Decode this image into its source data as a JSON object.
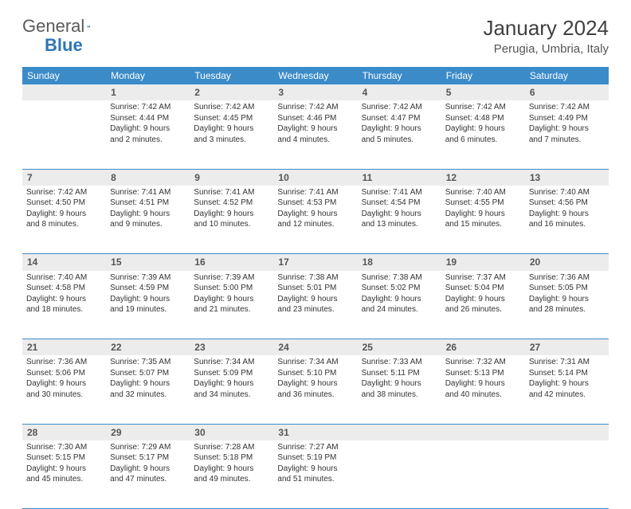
{
  "brand": {
    "part1": "General",
    "part2": "Blue"
  },
  "title": "January 2024",
  "location": "Perugia, Umbria, Italy",
  "colors": {
    "header_bg": "#3b8bc9",
    "header_text": "#ffffff",
    "daynum_bg": "#ececec",
    "border": "#3b8bc9",
    "text": "#333333",
    "brand_blue": "#2e75b6",
    "brand_gray": "#5a5a5a"
  },
  "day_headers": [
    "Sunday",
    "Monday",
    "Tuesday",
    "Wednesday",
    "Thursday",
    "Friday",
    "Saturday"
  ],
  "weeks": [
    {
      "nums": [
        "",
        "1",
        "2",
        "3",
        "4",
        "5",
        "6"
      ],
      "cells": [
        null,
        {
          "sunrise": "Sunrise: 7:42 AM",
          "sunset": "Sunset: 4:44 PM",
          "day1": "Daylight: 9 hours",
          "day2": "and 2 minutes."
        },
        {
          "sunrise": "Sunrise: 7:42 AM",
          "sunset": "Sunset: 4:45 PM",
          "day1": "Daylight: 9 hours",
          "day2": "and 3 minutes."
        },
        {
          "sunrise": "Sunrise: 7:42 AM",
          "sunset": "Sunset: 4:46 PM",
          "day1": "Daylight: 9 hours",
          "day2": "and 4 minutes."
        },
        {
          "sunrise": "Sunrise: 7:42 AM",
          "sunset": "Sunset: 4:47 PM",
          "day1": "Daylight: 9 hours",
          "day2": "and 5 minutes."
        },
        {
          "sunrise": "Sunrise: 7:42 AM",
          "sunset": "Sunset: 4:48 PM",
          "day1": "Daylight: 9 hours",
          "day2": "and 6 minutes."
        },
        {
          "sunrise": "Sunrise: 7:42 AM",
          "sunset": "Sunset: 4:49 PM",
          "day1": "Daylight: 9 hours",
          "day2": "and 7 minutes."
        }
      ]
    },
    {
      "nums": [
        "7",
        "8",
        "9",
        "10",
        "11",
        "12",
        "13"
      ],
      "cells": [
        {
          "sunrise": "Sunrise: 7:42 AM",
          "sunset": "Sunset: 4:50 PM",
          "day1": "Daylight: 9 hours",
          "day2": "and 8 minutes."
        },
        {
          "sunrise": "Sunrise: 7:41 AM",
          "sunset": "Sunset: 4:51 PM",
          "day1": "Daylight: 9 hours",
          "day2": "and 9 minutes."
        },
        {
          "sunrise": "Sunrise: 7:41 AM",
          "sunset": "Sunset: 4:52 PM",
          "day1": "Daylight: 9 hours",
          "day2": "and 10 minutes."
        },
        {
          "sunrise": "Sunrise: 7:41 AM",
          "sunset": "Sunset: 4:53 PM",
          "day1": "Daylight: 9 hours",
          "day2": "and 12 minutes."
        },
        {
          "sunrise": "Sunrise: 7:41 AM",
          "sunset": "Sunset: 4:54 PM",
          "day1": "Daylight: 9 hours",
          "day2": "and 13 minutes."
        },
        {
          "sunrise": "Sunrise: 7:40 AM",
          "sunset": "Sunset: 4:55 PM",
          "day1": "Daylight: 9 hours",
          "day2": "and 15 minutes."
        },
        {
          "sunrise": "Sunrise: 7:40 AM",
          "sunset": "Sunset: 4:56 PM",
          "day1": "Daylight: 9 hours",
          "day2": "and 16 minutes."
        }
      ]
    },
    {
      "nums": [
        "14",
        "15",
        "16",
        "17",
        "18",
        "19",
        "20"
      ],
      "cells": [
        {
          "sunrise": "Sunrise: 7:40 AM",
          "sunset": "Sunset: 4:58 PM",
          "day1": "Daylight: 9 hours",
          "day2": "and 18 minutes."
        },
        {
          "sunrise": "Sunrise: 7:39 AM",
          "sunset": "Sunset: 4:59 PM",
          "day1": "Daylight: 9 hours",
          "day2": "and 19 minutes."
        },
        {
          "sunrise": "Sunrise: 7:39 AM",
          "sunset": "Sunset: 5:00 PM",
          "day1": "Daylight: 9 hours",
          "day2": "and 21 minutes."
        },
        {
          "sunrise": "Sunrise: 7:38 AM",
          "sunset": "Sunset: 5:01 PM",
          "day1": "Daylight: 9 hours",
          "day2": "and 23 minutes."
        },
        {
          "sunrise": "Sunrise: 7:38 AM",
          "sunset": "Sunset: 5:02 PM",
          "day1": "Daylight: 9 hours",
          "day2": "and 24 minutes."
        },
        {
          "sunrise": "Sunrise: 7:37 AM",
          "sunset": "Sunset: 5:04 PM",
          "day1": "Daylight: 9 hours",
          "day2": "and 26 minutes."
        },
        {
          "sunrise": "Sunrise: 7:36 AM",
          "sunset": "Sunset: 5:05 PM",
          "day1": "Daylight: 9 hours",
          "day2": "and 28 minutes."
        }
      ]
    },
    {
      "nums": [
        "21",
        "22",
        "23",
        "24",
        "25",
        "26",
        "27"
      ],
      "cells": [
        {
          "sunrise": "Sunrise: 7:36 AM",
          "sunset": "Sunset: 5:06 PM",
          "day1": "Daylight: 9 hours",
          "day2": "and 30 minutes."
        },
        {
          "sunrise": "Sunrise: 7:35 AM",
          "sunset": "Sunset: 5:07 PM",
          "day1": "Daylight: 9 hours",
          "day2": "and 32 minutes."
        },
        {
          "sunrise": "Sunrise: 7:34 AM",
          "sunset": "Sunset: 5:09 PM",
          "day1": "Daylight: 9 hours",
          "day2": "and 34 minutes."
        },
        {
          "sunrise": "Sunrise: 7:34 AM",
          "sunset": "Sunset: 5:10 PM",
          "day1": "Daylight: 9 hours",
          "day2": "and 36 minutes."
        },
        {
          "sunrise": "Sunrise: 7:33 AM",
          "sunset": "Sunset: 5:11 PM",
          "day1": "Daylight: 9 hours",
          "day2": "and 38 minutes."
        },
        {
          "sunrise": "Sunrise: 7:32 AM",
          "sunset": "Sunset: 5:13 PM",
          "day1": "Daylight: 9 hours",
          "day2": "and 40 minutes."
        },
        {
          "sunrise": "Sunrise: 7:31 AM",
          "sunset": "Sunset: 5:14 PM",
          "day1": "Daylight: 9 hours",
          "day2": "and 42 minutes."
        }
      ]
    },
    {
      "nums": [
        "28",
        "29",
        "30",
        "31",
        "",
        "",
        ""
      ],
      "cells": [
        {
          "sunrise": "Sunrise: 7:30 AM",
          "sunset": "Sunset: 5:15 PM",
          "day1": "Daylight: 9 hours",
          "day2": "and 45 minutes."
        },
        {
          "sunrise": "Sunrise: 7:29 AM",
          "sunset": "Sunset: 5:17 PM",
          "day1": "Daylight: 9 hours",
          "day2": "and 47 minutes."
        },
        {
          "sunrise": "Sunrise: 7:28 AM",
          "sunset": "Sunset: 5:18 PM",
          "day1": "Daylight: 9 hours",
          "day2": "and 49 minutes."
        },
        {
          "sunrise": "Sunrise: 7:27 AM",
          "sunset": "Sunset: 5:19 PM",
          "day1": "Daylight: 9 hours",
          "day2": "and 51 minutes."
        },
        null,
        null,
        null
      ]
    }
  ]
}
